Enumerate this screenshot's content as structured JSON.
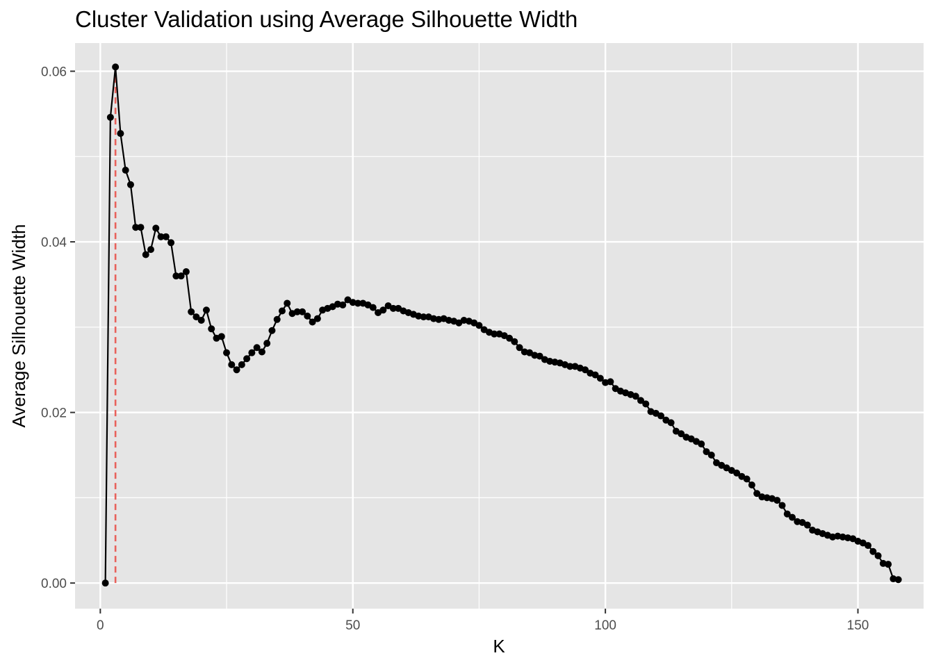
{
  "chart_data": {
    "type": "line",
    "title": "Cluster Validation using Average Silhouette Width",
    "xlabel": "K",
    "ylabel": "Average Silhouette Width",
    "xlim": [
      -5,
      163
    ],
    "ylim": [
      -0.003,
      0.0633
    ],
    "x_ticks": [
      0,
      50,
      100,
      150
    ],
    "x_tick_labels": [
      "0",
      "50",
      "100",
      "150"
    ],
    "y_ticks": [
      0.0,
      0.02,
      0.04,
      0.06
    ],
    "y_tick_labels": [
      "0.00",
      "0.02",
      "0.04",
      "0.06"
    ],
    "grid": true,
    "legend": "none",
    "colors": {
      "panel_background": "#e5e5e5",
      "grid": "#ffffff",
      "line": "#000000",
      "points": "#000000",
      "optimal_k_line": "#e8615b"
    },
    "optimal_k": 3,
    "series": [
      {
        "x": [
          1,
          2,
          3,
          4,
          5,
          6,
          7,
          8,
          9,
          10,
          11,
          12,
          13,
          14,
          15,
          16,
          17,
          18,
          19,
          20,
          21,
          22,
          23,
          24,
          25,
          26,
          27,
          28,
          29,
          30,
          31,
          32,
          33,
          34,
          35,
          36,
          37,
          38,
          39,
          40,
          41,
          42,
          43,
          44,
          45,
          46,
          47,
          48,
          49,
          50,
          51,
          52,
          53,
          54,
          55,
          56,
          57,
          58,
          59,
          60,
          61,
          62,
          63,
          64,
          65,
          66,
          67,
          68,
          69,
          70,
          71,
          72,
          73,
          74,
          75,
          76,
          77,
          78,
          79,
          80,
          81,
          82,
          83,
          84,
          85,
          86,
          87,
          88,
          89,
          90,
          91,
          92,
          93,
          94,
          95,
          96,
          97,
          98,
          99,
          100,
          101,
          102,
          103,
          104,
          105,
          106,
          107,
          108,
          109,
          110,
          111,
          112,
          113,
          114,
          115,
          116,
          117,
          118,
          119,
          120,
          121,
          122,
          123,
          124,
          125,
          126,
          127,
          128,
          129,
          130,
          131,
          132,
          133,
          134,
          135,
          136,
          137,
          138,
          139,
          140,
          141,
          142,
          143,
          144,
          145,
          146,
          147,
          148,
          149,
          150,
          151,
          152,
          153,
          154,
          155,
          156,
          157,
          158
        ],
        "values": [
          0.0,
          0.0546,
          0.0605,
          0.0527,
          0.0484,
          0.0467,
          0.0417,
          0.0417,
          0.0385,
          0.0391,
          0.0416,
          0.0406,
          0.0406,
          0.0399,
          0.036,
          0.036,
          0.0365,
          0.0318,
          0.0312,
          0.0308,
          0.032,
          0.0298,
          0.0287,
          0.0289,
          0.027,
          0.0256,
          0.025,
          0.0256,
          0.0263,
          0.027,
          0.0276,
          0.0271,
          0.0281,
          0.0296,
          0.0309,
          0.0319,
          0.0328,
          0.0316,
          0.0318,
          0.0318,
          0.0313,
          0.0306,
          0.031,
          0.032,
          0.0322,
          0.0324,
          0.0327,
          0.0326,
          0.0332,
          0.0329,
          0.0328,
          0.0328,
          0.0326,
          0.0323,
          0.0317,
          0.032,
          0.0325,
          0.0322,
          0.0322,
          0.0319,
          0.0317,
          0.0315,
          0.0313,
          0.0312,
          0.0312,
          0.031,
          0.0309,
          0.031,
          0.0308,
          0.0307,
          0.0305,
          0.0308,
          0.0307,
          0.0305,
          0.0302,
          0.0297,
          0.0294,
          0.0292,
          0.0292,
          0.029,
          0.0287,
          0.0283,
          0.0276,
          0.0271,
          0.027,
          0.0267,
          0.0266,
          0.0262,
          0.026,
          0.0259,
          0.0258,
          0.0256,
          0.0254,
          0.0254,
          0.0252,
          0.025,
          0.0246,
          0.0244,
          0.024,
          0.0235,
          0.0236,
          0.0228,
          0.0225,
          0.0223,
          0.0221,
          0.0219,
          0.0214,
          0.021,
          0.0201,
          0.0199,
          0.0196,
          0.0191,
          0.0188,
          0.0178,
          0.0175,
          0.0171,
          0.0169,
          0.0166,
          0.0163,
          0.0154,
          0.015,
          0.0141,
          0.0138,
          0.0135,
          0.0132,
          0.0129,
          0.0125,
          0.0122,
          0.0115,
          0.0105,
          0.0101,
          0.01,
          0.0099,
          0.0097,
          0.0091,
          0.0081,
          0.0077,
          0.0072,
          0.0071,
          0.0068,
          0.0062,
          0.006,
          0.0058,
          0.0056,
          0.0054,
          0.0055,
          0.0054,
          0.0053,
          0.0052,
          0.0049,
          0.0047,
          0.0044,
          0.0037,
          0.0032,
          0.0023,
          0.0022,
          0.0005,
          0.0004
        ]
      }
    ]
  }
}
